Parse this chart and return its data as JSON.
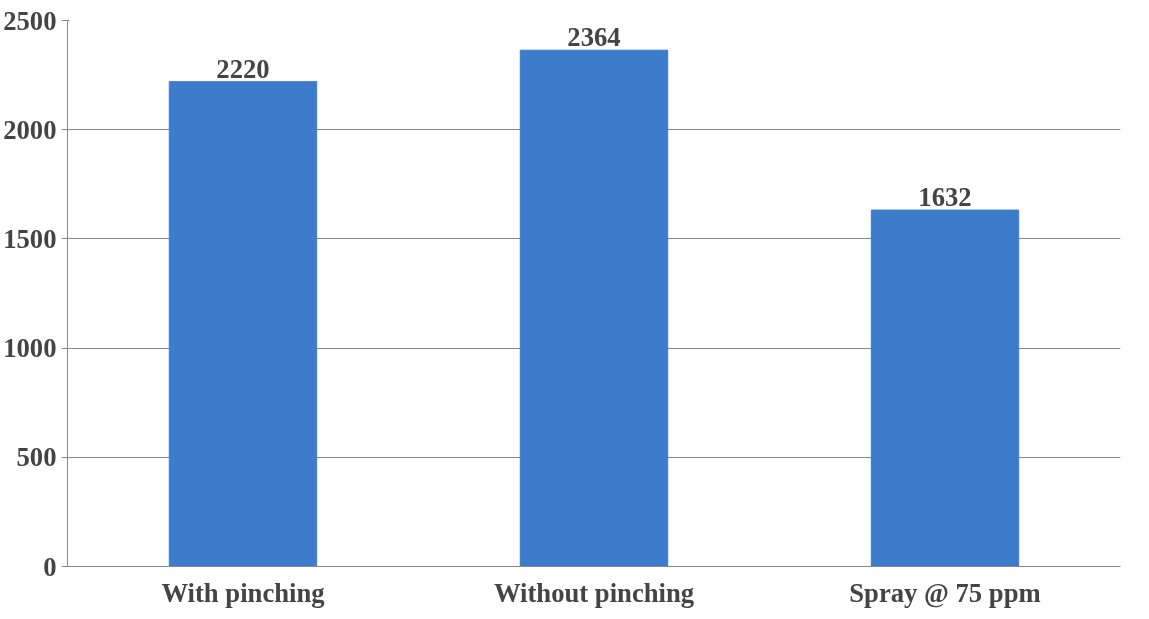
{
  "chart_data": {
    "type": "bar",
    "categories": [
      "With pinching",
      "Without pinching",
      "Spray @ 75 ppm"
    ],
    "values": [
      2220,
      2364,
      1632
    ],
    "color": "#3d7bcb",
    "ylim": [
      0,
      2500
    ],
    "yticks": [
      0,
      500,
      1000,
      1500,
      2000,
      2500
    ],
    "grid": "y",
    "data_labels": true
  }
}
